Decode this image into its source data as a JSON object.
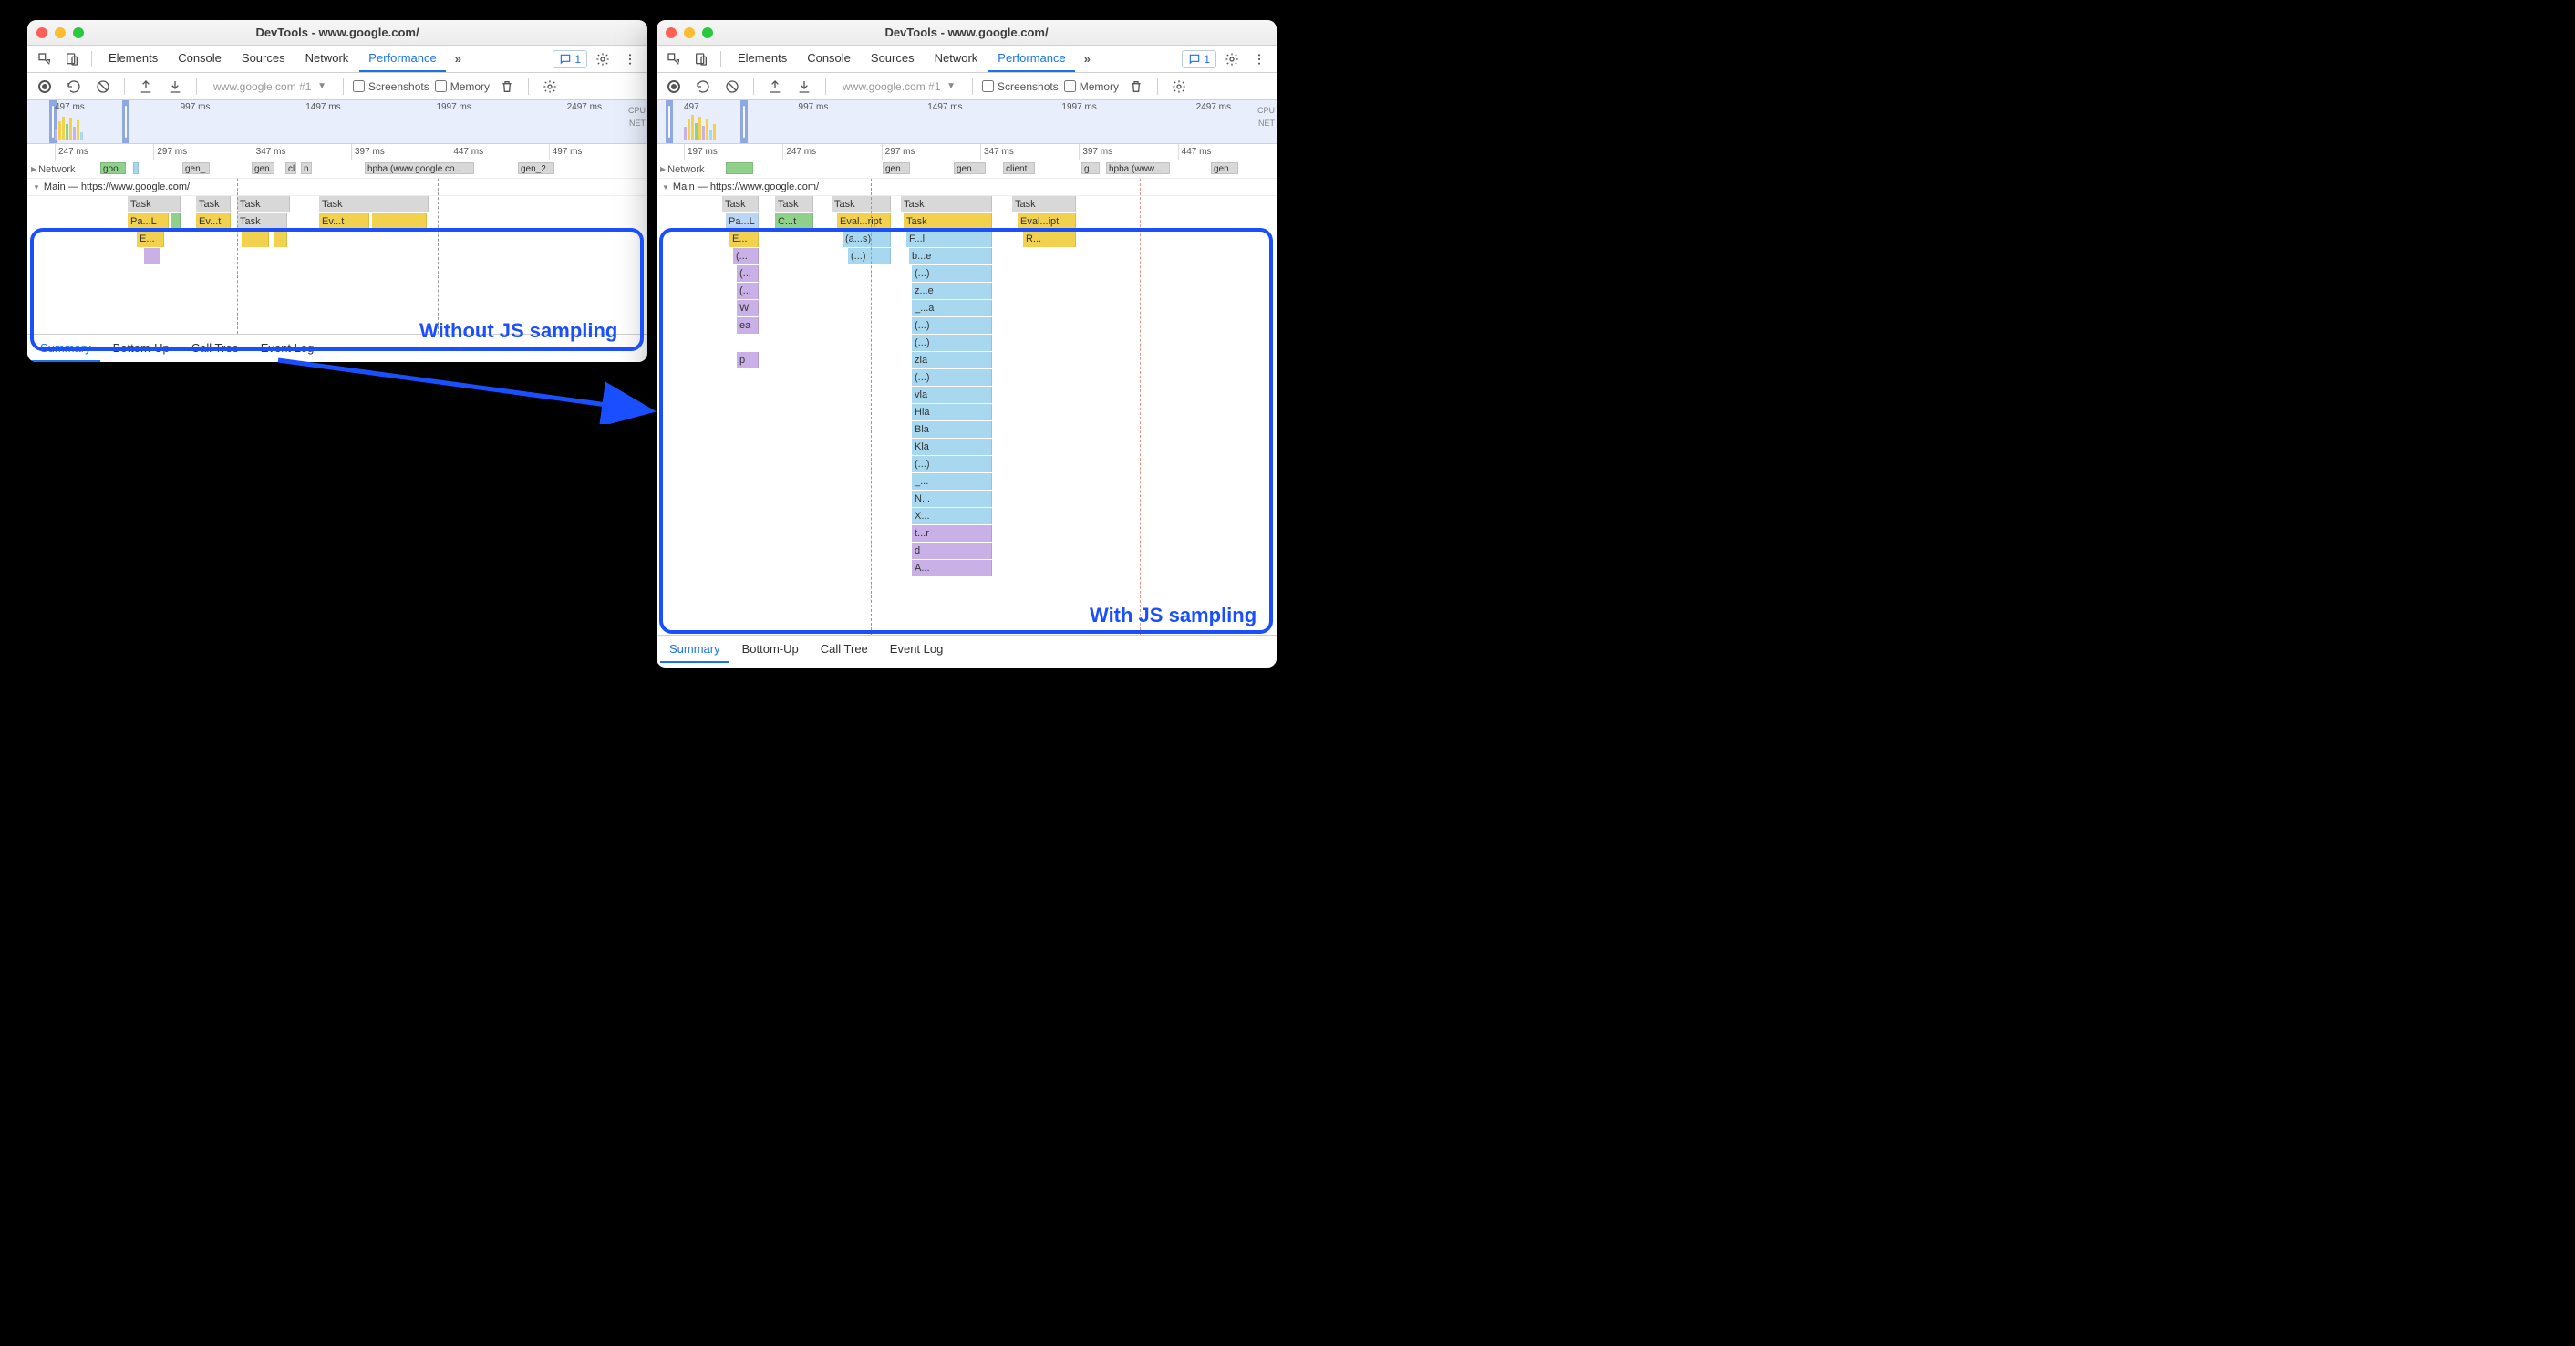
{
  "colors": {
    "task_gray": "#d8d8d8",
    "script_yellow": "#f2d14f",
    "script_yellow_dk": "#e8c03a",
    "layout_purple": "#c9b0e6",
    "render_green": "#8fd18a",
    "system_gray": "#bfbfbf",
    "paint_teal": "#86d6d0",
    "gpu_cyan": "#a8d8ef",
    "light_blue": "#bcd5f5",
    "accent_blue": "#1a73e8",
    "annotation_blue": "#1a4fff"
  },
  "window_title": "DevTools - www.google.com/",
  "main_tabs": [
    "Elements",
    "Console",
    "Sources",
    "Network",
    "Performance"
  ],
  "active_main_tab": 4,
  "chat_badge_count": "1",
  "toolbar": {
    "url_label": "www.google.com #1",
    "screenshots_label": "Screenshots",
    "memory_label": "Memory"
  },
  "bottom_tabs": [
    "Summary",
    "Bottom-Up",
    "Call Tree",
    "Event Log"
  ],
  "active_bottom_tab": 0,
  "left": {
    "annotation": "Without JS sampling",
    "overview_ticks": [
      "497 ms",
      "997 ms",
      "1497 ms",
      "1997 ms",
      "2497 ms"
    ],
    "overview_side": [
      "CPU",
      "NET"
    ],
    "ruler_ticks": [
      "247 ms",
      "297 ms",
      "347 ms",
      "397 ms",
      "447 ms",
      "497 ms"
    ],
    "network_label": "Network",
    "network_blocks": [
      {
        "l": 12,
        "w": 28,
        "bg": "#8fd18a",
        "text": "goo..."
      },
      {
        "l": 48,
        "w": 4,
        "bg": "#a8d8ef",
        "text": ""
      },
      {
        "l": 102,
        "w": 30,
        "bg": "#d8d8d8",
        "text": "gen_..."
      },
      {
        "l": 178,
        "w": 25,
        "bg": "#d8d8d8",
        "text": "gen..."
      },
      {
        "l": 215,
        "w": 12,
        "bg": "#d8d8d8",
        "text": "cl..."
      },
      {
        "l": 232,
        "w": 12,
        "bg": "#d8d8d8",
        "text": "n..."
      },
      {
        "l": 302,
        "w": 120,
        "bg": "#d8d8d8",
        "text": "hpba (www.google.co..."
      },
      {
        "l": 470,
        "w": 40,
        "bg": "#d8d8d8",
        "text": "gen_2..."
      }
    ],
    "main_label": "Main — https://www.google.com/",
    "flame_rows": [
      [
        {
          "l": 110,
          "w": 58,
          "bg": "#d8d8d8",
          "text": "Task"
        },
        {
          "l": 185,
          "w": 38,
          "bg": "#d8d8d8",
          "text": "Task"
        },
        {
          "l": 230,
          "w": 58,
          "bg": "#d8d8d8",
          "text": "Task"
        },
        {
          "l": 320,
          "w": 120,
          "bg": "#d8d8d8",
          "text": "Task"
        }
      ],
      [
        {
          "l": 110,
          "w": 45,
          "bg": "#f2d14f",
          "text": "Pa...L"
        },
        {
          "l": 158,
          "w": 10,
          "bg": "#8fd18a",
          "text": ""
        },
        {
          "l": 185,
          "w": 38,
          "bg": "#f2d14f",
          "text": "Ev...t"
        },
        {
          "l": 230,
          "w": 55,
          "bg": "#d8d8d8",
          "text": "Task"
        },
        {
          "l": 320,
          "w": 55,
          "bg": "#f2d14f",
          "text": "Ev...t"
        },
        {
          "l": 378,
          "w": 60,
          "bg": "#f2d14f",
          "text": ""
        }
      ],
      [
        {
          "l": 120,
          "w": 30,
          "bg": "#f2d14f",
          "text": "E..."
        },
        {
          "l": 235,
          "w": 30,
          "bg": "#f2d14f",
          "text": ""
        },
        {
          "l": 270,
          "w": 15,
          "bg": "#f2d14f",
          "text": ""
        }
      ],
      [
        {
          "l": 128,
          "w": 18,
          "bg": "#c9b0e6",
          "text": ""
        }
      ]
    ]
  },
  "right": {
    "annotation": "With JS sampling",
    "overview_ticks": [
      "497",
      "997 ms",
      "1497 ms",
      "1997 ms",
      "2497 ms"
    ],
    "overview_side": [
      "CPU",
      "NET"
    ],
    "ruler_ticks": [
      "197 ms",
      "247 ms",
      "297 ms",
      "347 ms",
      "397 ms",
      "447 ms"
    ],
    "network_label": "Network",
    "network_blocks": [
      {
        "l": 8,
        "w": 30,
        "bg": "#8fd18a",
        "text": ""
      },
      {
        "l": 180,
        "w": 30,
        "bg": "#d8d8d8",
        "text": "gen..."
      },
      {
        "l": 258,
        "w": 35,
        "bg": "#d8d8d8",
        "text": "gen..."
      },
      {
        "l": 312,
        "w": 35,
        "bg": "#d8d8d8",
        "text": "client"
      },
      {
        "l": 398,
        "w": 20,
        "bg": "#d8d8d8",
        "text": "g..."
      },
      {
        "l": 425,
        "w": 70,
        "bg": "#d8d8d8",
        "text": "hpba (www..."
      },
      {
        "l": 540,
        "w": 30,
        "bg": "#d8d8d8",
        "text": "gen"
      }
    ],
    "main_label": "Main — https://www.google.com/",
    "col_positions": {
      "c1": 72,
      "c2": 130,
      "c3": 192,
      "c4": 268,
      "c5": 390
    },
    "col_widths": {
      "c1": 40,
      "c2": 42,
      "c3": 65,
      "c4": 100,
      "c5": 70
    },
    "stack_c1": [
      "Task",
      "Pa...L",
      "E...",
      "(...",
      "(...",
      "(...",
      "W",
      "ea",
      "",
      "p",
      ""
    ],
    "stack_c1_colors": [
      "#d8d8d8",
      "#bcd5f5",
      "#f2d14f",
      "#c9b0e6",
      "#c9b0e6",
      "#c9b0e6",
      "#c9b0e6",
      "#c9b0e6",
      "",
      "#c9b0e6",
      "#c9b0e6"
    ],
    "stack_c2": [
      "Task",
      "C...t"
    ],
    "stack_c2_colors": [
      "#d8d8d8",
      "#8fd18a"
    ],
    "stack_c3": [
      "Task",
      "Eval...ript",
      "(a...s)",
      "(...)"
    ],
    "stack_c3_colors": [
      "#d8d8d8",
      "#f2d14f",
      "#a8d8ef",
      "#a8d8ef"
    ],
    "stack_c4": [
      "Task",
      "Task",
      "F...l",
      "b...e",
      "(...)",
      "z...e",
      "_...a",
      "(...)",
      "(...)",
      "zla",
      "(...)",
      "vla",
      "Hla",
      "Bla",
      "Kla",
      "(...)",
      "_...",
      "N...",
      "X...",
      "t...r",
      "d",
      "A..."
    ],
    "stack_c4_colors": [
      "#d8d8d8",
      "#f2d14f",
      "#a8d8ef",
      "#a8d8ef",
      "#a8d8ef",
      "#a8d8ef",
      "#a8d8ef",
      "#a8d8ef",
      "#a8d8ef",
      "#a8d8ef",
      "#a8d8ef",
      "#a8d8ef",
      "#a8d8ef",
      "#a8d8ef",
      "#a8d8ef",
      "#a8d8ef",
      "#a8d8ef",
      "#a8d8ef",
      "#a8d8ef",
      "#c9b0e6",
      "#c9b0e6",
      "#c9b0e6"
    ],
    "stack_c5": [
      "Task",
      "Eval...ipt",
      "R..."
    ],
    "stack_c5_colors": [
      "#d8d8d8",
      "#f2d14f",
      "#f2d14f"
    ]
  }
}
